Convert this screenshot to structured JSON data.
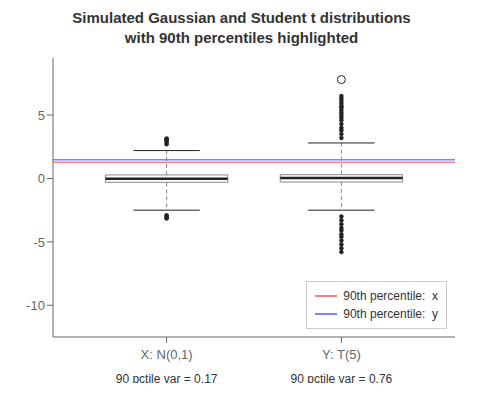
{
  "chart_data": {
    "type": "box",
    "title": "Simulated Gaussian and Student t distributions",
    "subtitle": "with 90th percentiles highlighted",
    "categories": [
      "X: N(0,1)",
      "Y: T(5)"
    ],
    "boxes": [
      {
        "q1": -0.3,
        "median": -0.02,
        "q3": 0.28,
        "whisker_low": -2.5,
        "whisker_high": 2.2,
        "outliers": [
          2.7,
          2.85,
          2.95,
          3.05,
          3.1,
          3.15,
          -2.9,
          -3.0,
          -3.1,
          -3.15
        ],
        "open_outliers": []
      },
      {
        "q1": -0.28,
        "median": 0.03,
        "q3": 0.3,
        "whisker_low": -2.5,
        "whisker_high": 2.8,
        "outliers": [
          3.2,
          3.5,
          3.8,
          4.0,
          4.3,
          4.6,
          4.8,
          5.0,
          5.2,
          5.4,
          5.6,
          5.7,
          5.9,
          6.1,
          6.3,
          6.5,
          7.8,
          -3.0,
          -3.3,
          -3.6,
          -3.9,
          -4.1,
          -4.4,
          -4.6,
          -4.9,
          -5.2,
          -5.5,
          -5.8
        ],
        "open_outliers": [
          7.8
        ]
      }
    ],
    "color": "#888888",
    "series": [
      {
        "name": "90th percentile:  x",
        "type": "hline",
        "value": 1.28,
        "color": "#FF8080"
      },
      {
        "name": "90th percentile:  y",
        "type": "hline",
        "value": 1.48,
        "color": "#8080FF"
      }
    ],
    "annotations": [
      "90 pctile var = 0.17",
      "90 pctile var = 0.76"
    ],
    "ylim": [
      -12.5,
      9.5
    ],
    "yticks": [
      -10,
      -5,
      0,
      5
    ],
    "legend": "lower right",
    "grid": false
  }
}
